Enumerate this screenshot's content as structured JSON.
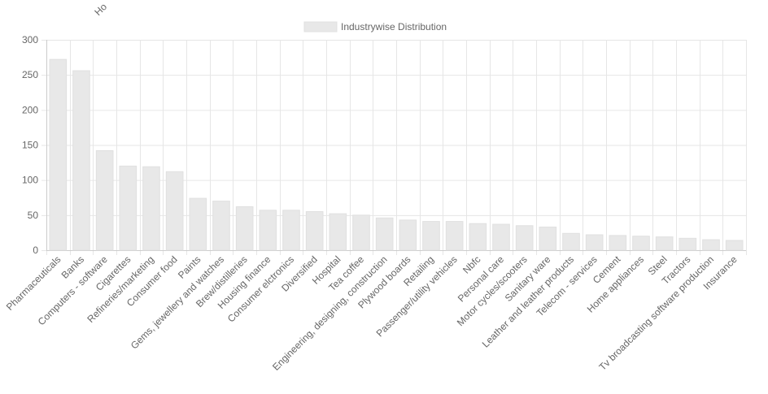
{
  "colors": {
    "bar_fill": "#e8e8e8",
    "bar_stroke": "#e0e0e0",
    "grid": "#e6e6e6",
    "axis": "#cccccc",
    "text": "#666666"
  },
  "header_fragment": "Ho",
  "chart_data": {
    "type": "bar",
    "title": "",
    "xlabel": "",
    "ylabel": "",
    "ylim": [
      0,
      300
    ],
    "yticks": [
      0,
      50,
      100,
      150,
      200,
      250,
      300
    ],
    "grid": true,
    "legend_position": "top-center",
    "categories": [
      "Pharmaceuticals",
      "Banks",
      "Computers - software",
      "Cigarettes",
      "Refineries/marketing",
      "Consumer food",
      "Paints",
      "Gems, jewellery and watches",
      "Brew/distilleries",
      "Housing finance",
      "Consumer elctronics",
      "Diversified",
      "Hospital",
      "Tea coffee",
      "Engineering, designing, construction",
      "Plywood boards",
      "Retailing",
      "Passenger/utility vehicles",
      "Nbfc",
      "Personal care",
      "Motor cycles/scooters",
      "Sanitary ware",
      "Leather and leather products",
      "Telecom - services",
      "Cement",
      "Home appliances",
      "Steel",
      "Tractors",
      "Tv broadcasting software production",
      "Insurance"
    ],
    "series": [
      {
        "name": "Industrywise Distribution",
        "values": [
          272,
          256,
          142,
          120,
          119,
          112,
          74,
          70,
          62,
          57,
          57,
          55,
          52,
          50,
          46,
          43,
          41,
          41,
          38,
          37,
          35,
          33,
          24,
          22,
          21,
          20,
          19,
          17,
          15,
          14
        ]
      }
    ]
  }
}
